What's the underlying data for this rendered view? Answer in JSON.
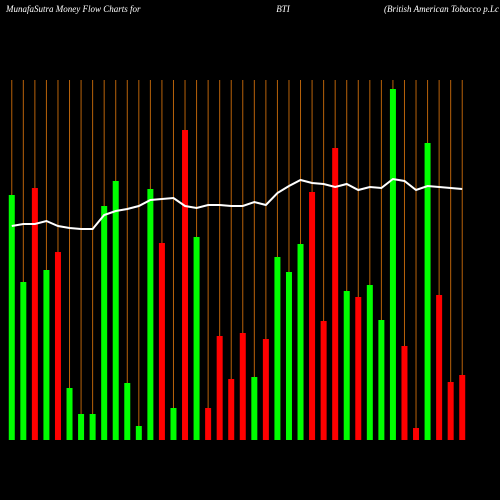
{
  "chart_data": {
    "type": "bar",
    "title": "MunafaSutra  Money Flow  Charts for",
    "ticker": "BTI",
    "subtitle": "(British American Tobacco p.Lc",
    "categories": [
      null,
      null,
      null,
      null,
      null,
      null,
      null,
      null,
      null,
      null,
      null,
      null,
      null,
      null,
      null,
      null,
      null,
      null,
      null,
      null,
      null,
      null,
      null,
      null,
      null,
      null,
      null,
      null,
      null,
      null,
      null,
      null,
      null,
      null,
      null,
      null,
      null,
      null,
      null,
      null
    ],
    "values": [
      245,
      158,
      252,
      170,
      188,
      52,
      26,
      26,
      234,
      259,
      57,
      14,
      251,
      197,
      32,
      310,
      203,
      32,
      104,
      61,
      107,
      63,
      101,
      183,
      168,
      196,
      248,
      119,
      292,
      149,
      143,
      155,
      120,
      351,
      94,
      12,
      297,
      145,
      58,
      65
    ],
    "colors": [
      "#00ff00",
      "#00ff00",
      "#ff0000",
      "#00ff00",
      "#ff0000",
      "#00ff00",
      "#00ff00",
      "#00ff00",
      "#00ff00",
      "#00ff00",
      "#00ff00",
      "#00ff00",
      "#00ff00",
      "#ff0000",
      "#00ff00",
      "#ff0000",
      "#00ff00",
      "#ff0000",
      "#ff0000",
      "#ff0000",
      "#ff0000",
      "#00ff00",
      "#ff0000",
      "#00ff00",
      "#00ff00",
      "#00ff00",
      "#ff0000",
      "#ff0000",
      "#ff0000",
      "#00ff00",
      "#ff0000",
      "#00ff00",
      "#00ff00",
      "#00ff00",
      "#ff0000",
      "#ff0000",
      "#00ff00",
      "#ff0000",
      "#ff0000",
      "#ff0000"
    ],
    "line": {
      "color": "#ffffff",
      "values": [
        214,
        216,
        216,
        219,
        214,
        212,
        211,
        211,
        225,
        229,
        231,
        234,
        240,
        241,
        242,
        234,
        232,
        235,
        235,
        234,
        234,
        238,
        235,
        247,
        254,
        260,
        257,
        256,
        253,
        256,
        250,
        253,
        252,
        261,
        259,
        250,
        254,
        253,
        252,
        251
      ]
    },
    "ylim": [
      0,
      360
    ],
    "grid_color": "#b8620a"
  }
}
